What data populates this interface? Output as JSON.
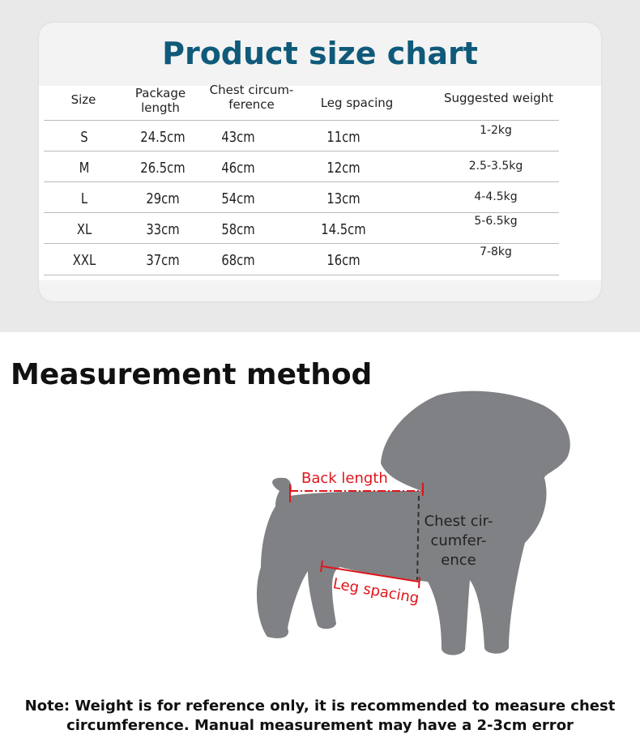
{
  "title": "Product size chart",
  "headers": [
    "Size",
    "Package length",
    "Chest circum-ference",
    "Leg spacing",
    "Suggested weight"
  ],
  "headers_display": {
    "pkg1": "Package",
    "pkg2": "length",
    "chest1": "Chest circum-",
    "chest2": "ference"
  },
  "rows": [
    {
      "size": "S",
      "package": "24.5cm",
      "chest": "43cm",
      "leg": "11cm",
      "weight": "1-2kg"
    },
    {
      "size": "M",
      "package": "26.5cm",
      "chest": "46cm",
      "leg": "12cm",
      "weight": "2.5-3.5kg"
    },
    {
      "size": "L",
      "package": "29cm",
      "chest": "54cm",
      "leg": "13cm",
      "weight": "4-4.5kg"
    },
    {
      "size": "XL",
      "package": "33cm",
      "chest": "58cm",
      "leg": "14.5cm",
      "weight": "5-6.5kg"
    },
    {
      "size": "XXL",
      "package": "37cm",
      "chest": "68cm",
      "leg": "16cm",
      "weight": "7-8kg"
    }
  ],
  "measurement": {
    "heading": "Measurement method",
    "back_length": "Back length",
    "chest": [
      "Chest cir-",
      "cumfer-",
      "ence"
    ],
    "leg_spacing": "Leg spacing"
  },
  "note": [
    "Note: Weight is for reference only, it is recommended to measure chest",
    "circumference. Manual measurement may have a 2-3cm error"
  ],
  "colors": {
    "title": "#0f5a7a",
    "annotation": "#e0151b",
    "dog": "#808184"
  }
}
